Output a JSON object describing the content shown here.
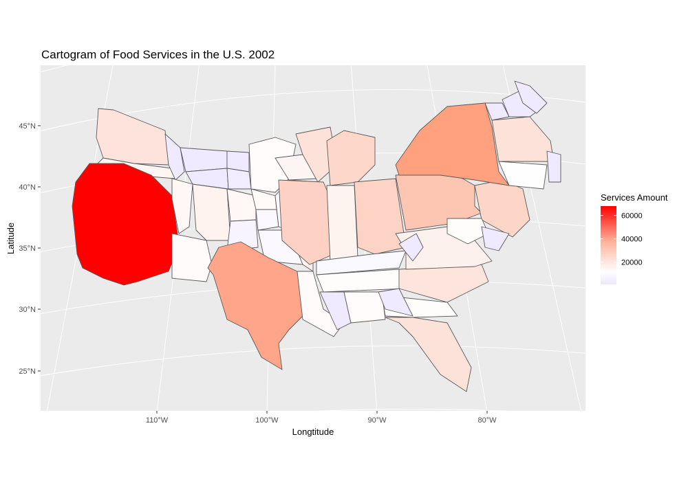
{
  "title": "Cartogram of Food Services in the U.S. 2002",
  "chart_data": {
    "type": "map",
    "title": "Cartogram of Food Services in the U.S. 2002",
    "xlabel": "Longtitude",
    "ylabel": "Latitude",
    "x_ticks": [
      "110°W",
      "100°W",
      "90°W",
      "80°W"
    ],
    "y_ticks": [
      "45°N",
      "40°N",
      "35°N",
      "30°N",
      "25°N"
    ],
    "legend": {
      "title": "Services Amount",
      "ticks": [
        "60000",
        "40000",
        "20000"
      ],
      "tick_values": [
        60000,
        40000,
        20000
      ],
      "range": [
        1000,
        68000
      ],
      "low_color": "#ece6ff",
      "mid_color": "#ffffff",
      "high_color": "#ff0000"
    },
    "colors": {
      "panel": "#ebebeb",
      "grid": "#ffffff",
      "border": "#595959"
    }
  }
}
